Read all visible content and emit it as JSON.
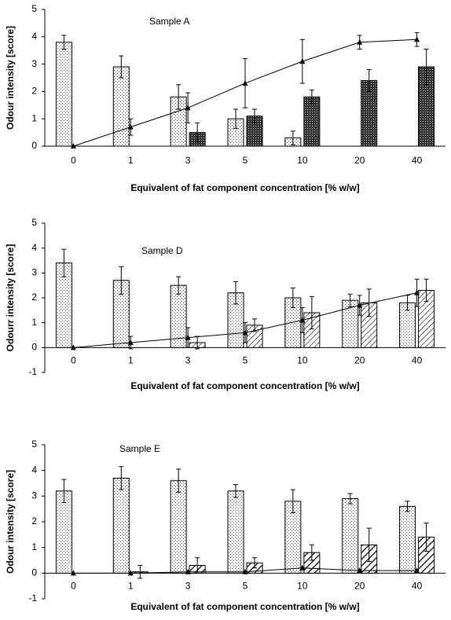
{
  "chart_data": [
    {
      "type": "bar",
      "title": "Sample A",
      "y_label": "Odour intensity [score]",
      "x_label": "Equivalent of fat component concentration [% w/w]",
      "categories": [
        "0",
        "1",
        "3",
        "5",
        "10",
        "20",
        "40"
      ],
      "ylim": [
        0,
        5
      ],
      "yticks": [
        0,
        1,
        2,
        3,
        4,
        5
      ],
      "series": [
        {
          "type": "bar",
          "pattern": "dots",
          "values": [
            3.8,
            2.9,
            1.8,
            1.0,
            0.3,
            null,
            null
          ],
          "errors": [
            0.25,
            0.4,
            0.45,
            0.35,
            0.25,
            null,
            null
          ]
        },
        {
          "type": "bar",
          "pattern": "crosshatch",
          "values": [
            null,
            null,
            0.5,
            1.1,
            1.8,
            2.4,
            2.9
          ],
          "errors": [
            null,
            null,
            0.35,
            0.25,
            0.25,
            0.4,
            0.65
          ]
        },
        {
          "type": "line",
          "color": "#000000",
          "values": [
            0,
            0.7,
            1.4,
            2.3,
            3.1,
            3.8,
            3.9
          ],
          "errors": [
            null,
            0.3,
            0.55,
            0.9,
            0.8,
            0.25,
            0.25
          ]
        }
      ]
    },
    {
      "type": "bar",
      "title": "Sample D",
      "y_label": "Odourr intensity [score]",
      "x_label": "Equivalent of fat component concentration [% w/w]",
      "categories": [
        "0",
        "1",
        "3",
        "5",
        "10",
        "20",
        "40"
      ],
      "ylim": [
        -1,
        5
      ],
      "yticks": [
        -1,
        0,
        1,
        2,
        3,
        4,
        5
      ],
      "series": [
        {
          "type": "bar",
          "pattern": "dots",
          "values": [
            3.4,
            2.7,
            2.5,
            2.2,
            2.0,
            1.9,
            1.8
          ],
          "errors": [
            0.55,
            0.55,
            0.35,
            0.45,
            0.4,
            0.25,
            0.3
          ]
        },
        {
          "type": "bar",
          "pattern": "hatch",
          "values": [
            null,
            null,
            0.2,
            0.9,
            1.4,
            1.8,
            2.3
          ],
          "errors": [
            null,
            null,
            0.25,
            0.25,
            0.65,
            0.55,
            0.45
          ]
        },
        {
          "type": "line",
          "color": "#000000",
          "values": [
            0,
            0.2,
            0.4,
            0.6,
            1.1,
            1.7,
            2.2
          ],
          "errors": [
            null,
            0.25,
            0.4,
            0.4,
            0.5,
            0.4,
            0.55
          ]
        }
      ]
    },
    {
      "type": "bar",
      "title": "Sample E",
      "y_label": "Odour intensity [score]",
      "x_label": "Equivalent of fat component concentration [% w/w]",
      "categories": [
        "0",
        "1",
        "3",
        "5",
        "10",
        "20",
        "40"
      ],
      "ylim": [
        -1,
        5
      ],
      "yticks": [
        -1,
        0,
        1,
        2,
        3,
        4,
        5
      ],
      "series": [
        {
          "type": "bar",
          "pattern": "dots",
          "values": [
            3.2,
            3.7,
            3.6,
            3.2,
            2.8,
            2.9,
            2.6
          ],
          "errors": [
            0.45,
            0.45,
            0.45,
            0.25,
            0.45,
            0.2,
            0.2
          ]
        },
        {
          "type": "bar",
          "pattern": "hatch-thick",
          "values": [
            null,
            0.05,
            0.3,
            0.4,
            0.8,
            1.1,
            1.4
          ],
          "errors": [
            null,
            0.25,
            0.3,
            0.2,
            0.3,
            0.65,
            0.55
          ]
        },
        {
          "type": "line",
          "color": "#000000",
          "values": [
            0,
            0,
            0.05,
            0.05,
            0.2,
            0.1,
            0.1
          ],
          "errors": [
            null,
            null,
            null,
            null,
            null,
            null,
            null
          ]
        }
      ]
    }
  ]
}
